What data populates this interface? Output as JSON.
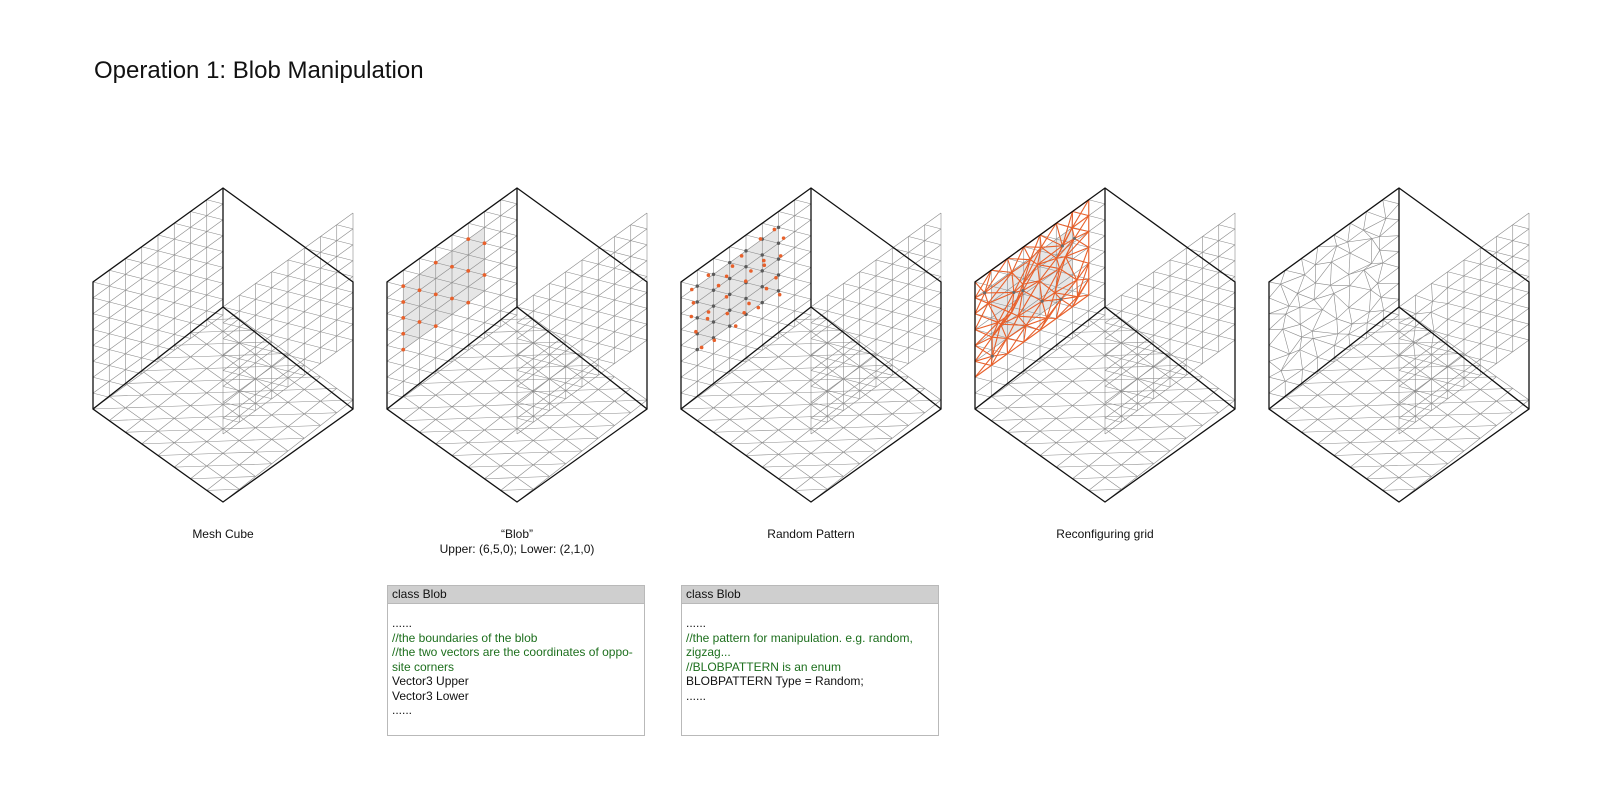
{
  "title": "Operation 1: Blob Manipulation",
  "colors": {
    "outline": "#111111",
    "grid": "#8a8a8a",
    "accent": "#e8602b",
    "blob_fill": "#e6e6e6",
    "comment": "#1d6f1d",
    "code_header": "#cfcfcf"
  },
  "panels": [
    {
      "id": "mesh-cube",
      "caption_lines": [
        "Mesh Cube"
      ]
    },
    {
      "id": "blob",
      "caption_lines": [
        "“Blob”",
        "Upper: (6,5,0); Lower: (2,1,0)"
      ]
    },
    {
      "id": "random-pattern",
      "caption_lines": [
        "Random Pattern"
      ]
    },
    {
      "id": "reconfiguring-grid",
      "caption_lines": [
        "Reconfiguring grid"
      ]
    },
    {
      "id": "result",
      "caption_lines": []
    }
  ],
  "code_blocks": [
    {
      "header": "class Blob",
      "lines": [
        {
          "text": "......",
          "type": "code"
        },
        {
          "text": "//the boundaries of the blob",
          "type": "comment"
        },
        {
          "text": "//the two vectors are the coordinates of oppo-site corners",
          "type": "comment"
        },
        {
          "text": "Vector3 Upper",
          "type": "code"
        },
        {
          "text": "Vector3 Lower",
          "type": "code"
        },
        {
          "text": "......",
          "type": "code"
        }
      ]
    },
    {
      "header": "class Blob",
      "lines": [
        {
          "text": "......",
          "type": "code"
        },
        {
          "text": "//the pattern for manipulation. e.g. random, zigzag...",
          "type": "comment"
        },
        {
          "text": "//BLOBPATTERN is an enum",
          "type": "comment"
        },
        {
          "text": "BLOBPATTERN Type = Random;",
          "type": "code"
        },
        {
          "text": "......",
          "type": "code"
        }
      ]
    }
  ]
}
